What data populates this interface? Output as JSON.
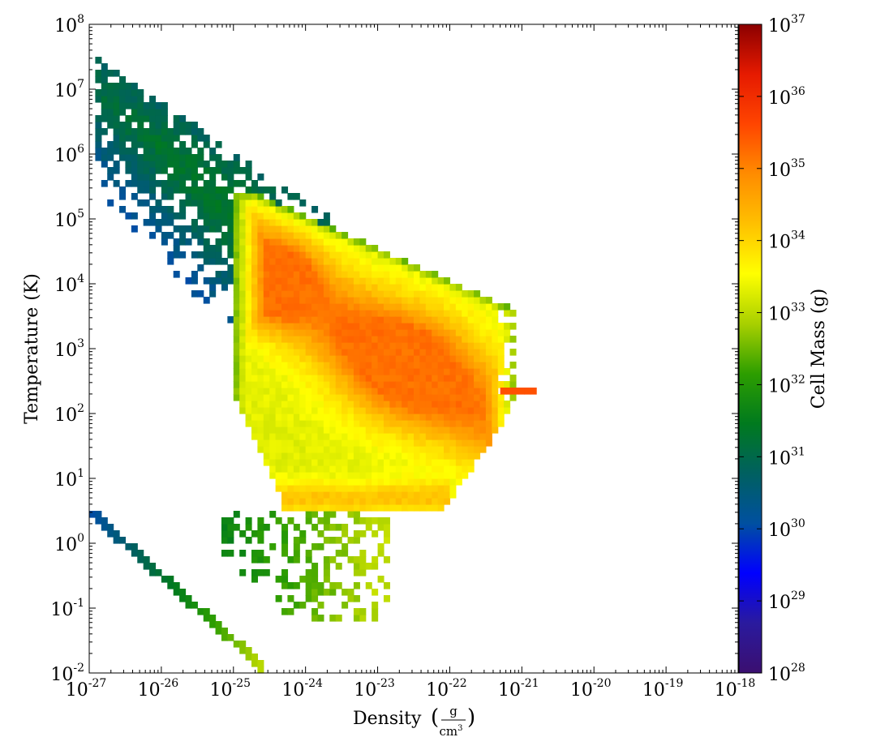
{
  "chart_data": {
    "type": "heatmap",
    "title": "",
    "xlabel": "Density",
    "xunit_num": "g",
    "xunit_den": "cm",
    "xunit_den_exp": "3",
    "ylabel": "Temperature",
    "yunit": "(K)",
    "colorbar_label": "Cell Mass",
    "colorbar_unit": "(g)",
    "x_scale": "log",
    "y_scale": "log",
    "c_scale": "log",
    "xlim": [
      1e-27,
      1e-18
    ],
    "ylim": [
      0.01,
      100000000.0
    ],
    "clim": [
      1e+28,
      1e+37
    ],
    "x_ticks": [
      {
        "base": "10",
        "exp": "-27"
      },
      {
        "base": "10",
        "exp": "-26"
      },
      {
        "base": "10",
        "exp": "-25"
      },
      {
        "base": "10",
        "exp": "-24"
      },
      {
        "base": "10",
        "exp": "-23"
      },
      {
        "base": "10",
        "exp": "-22"
      },
      {
        "base": "10",
        "exp": "-21"
      },
      {
        "base": "10",
        "exp": "-20"
      },
      {
        "base": "10",
        "exp": "-19"
      },
      {
        "base": "10",
        "exp": "-18"
      }
    ],
    "y_ticks": [
      {
        "base": "10",
        "exp": "-2"
      },
      {
        "base": "10",
        "exp": "-1"
      },
      {
        "base": "10",
        "exp": "0"
      },
      {
        "base": "10",
        "exp": "1"
      },
      {
        "base": "10",
        "exp": "2"
      },
      {
        "base": "10",
        "exp": "3"
      },
      {
        "base": "10",
        "exp": "4"
      },
      {
        "base": "10",
        "exp": "5"
      },
      {
        "base": "10",
        "exp": "6"
      },
      {
        "base": "10",
        "exp": "7"
      },
      {
        "base": "10",
        "exp": "8"
      }
    ],
    "colorbar_ticks": [
      {
        "base": "10",
        "exp": "28"
      },
      {
        "base": "10",
        "exp": "29"
      },
      {
        "base": "10",
        "exp": "30"
      },
      {
        "base": "10",
        "exp": "31"
      },
      {
        "base": "10",
        "exp": "32"
      },
      {
        "base": "10",
        "exp": "33"
      },
      {
        "base": "10",
        "exp": "34"
      },
      {
        "base": "10",
        "exp": "35"
      },
      {
        "base": "10",
        "exp": "36"
      },
      {
        "base": "10",
        "exp": "37"
      }
    ],
    "colormap": [
      "#3b0f70",
      "#2a1a9e",
      "#0000ff",
      "#0050a0",
      "#006060",
      "#007a1e",
      "#2d9e00",
      "#a8d000",
      "#ffff00",
      "#ffc000",
      "#ff8c00",
      "#ff4500",
      "#e61a00",
      "#8b0000"
    ],
    "grid": false,
    "bins_x_per_decade": 12,
    "bins_y_per_decade": 10,
    "features": {
      "upper_left_wing": {
        "log_rho_range": [
          -26.9,
          -25.0
        ],
        "log_T_at_start": 7.0,
        "log_T_slope": -1.0,
        "log_mass_inner": 31.3,
        "log_mass_outer": 30.0
      },
      "main_region_bounds": {
        "log_rho_min": -25.0,
        "log_rho_max": -21.05,
        "log_T_min": 0.5,
        "log_T_max": 5.4
      },
      "peak_1": {
        "log_rho": -24.4,
        "log_T": 4.05,
        "log_mass": 36.6
      },
      "peak_2": {
        "log_rho": -22.6,
        "log_T": 2.75,
        "log_mass": 36.3
      },
      "low_temperature_ridge": {
        "log_rho_range": [
          -24.5,
          -22.0
        ],
        "log_T": 0.7,
        "log_mass": 34.6
      },
      "diagonal_tail": {
        "log_rho_start": -27.0,
        "log_T_start": 0.5,
        "log_rho_end": -24.6,
        "log_T_end": -1.9,
        "log_mass_start": 30.0,
        "log_mass_end": 33.0
      },
      "right_extension": {
        "log_rho": -21.0,
        "log_T": 2.3,
        "log_mass": 35.5
      }
    }
  }
}
